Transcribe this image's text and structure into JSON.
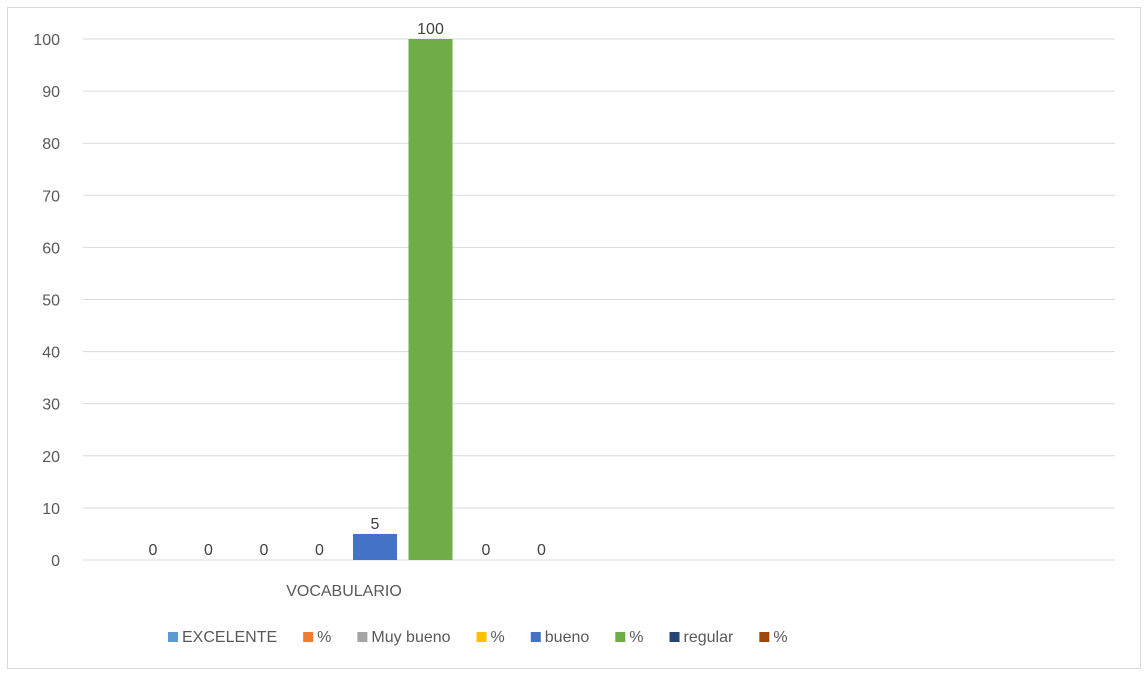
{
  "chart_data": {
    "type": "bar",
    "categories": [
      "VOCABULARIO"
    ],
    "series": [
      {
        "name": "EXCELENTE",
        "values": [
          0
        ],
        "color": "#5b9bd5"
      },
      {
        "name": "%",
        "values": [
          0
        ],
        "color": "#ed7d31"
      },
      {
        "name": "Muy bueno",
        "values": [
          0
        ],
        "color": "#a5a5a5"
      },
      {
        "name": "%",
        "values": [
          0
        ],
        "color": "#ffc000"
      },
      {
        "name": "bueno",
        "values": [
          5
        ],
        "color": "#4472c4"
      },
      {
        "name": "%",
        "values": [
          100
        ],
        "color": "#70ad47"
      },
      {
        "name": "regular",
        "values": [
          0
        ],
        "color": "#264478"
      },
      {
        "name": "%",
        "values": [
          0
        ],
        "color": "#9e480e"
      }
    ],
    "yticks": [
      "0",
      "10",
      "20",
      "30",
      "40",
      "50",
      "60",
      "70",
      "80",
      "90",
      "100"
    ],
    "ylim": [
      0,
      100
    ],
    "grid": true,
    "gridline_color": "#d9d9d9",
    "legend_position": "bottom"
  }
}
